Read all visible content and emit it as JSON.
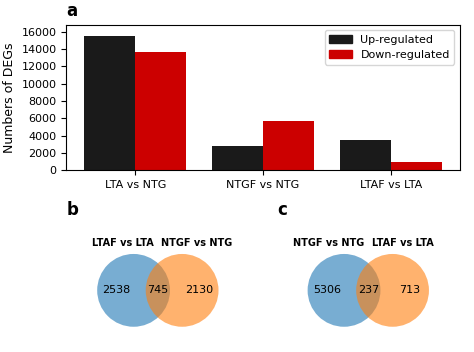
{
  "chart_data": [
    {
      "type": "bar",
      "title": "a",
      "categories": [
        "LTA vs NTG",
        "NTGF vs NTG",
        "LTAF vs LTA"
      ],
      "series": [
        {
          "name": "Up-regulated",
          "color": "#1a1a1a",
          "values": [
            15500,
            2800,
            3500
          ]
        },
        {
          "name": "Down-regulated",
          "color": "#cc0000",
          "values": [
            13700,
            5700,
            900
          ]
        }
      ],
      "y_label": "Numbers of DEGs",
      "ylim": [
        0,
        16800
      ],
      "yticks": [
        0,
        2000,
        4000,
        6000,
        8000,
        10000,
        12000,
        14000,
        16000
      ],
      "legend": "upper right"
    },
    {
      "type": "venn",
      "title": "b",
      "categories": [
        "LTAF vs LTA",
        null,
        "NTGF vs NTG"
      ],
      "values": [
        2538,
        745,
        2130
      ]
    },
    {
      "type": "venn",
      "title": "c",
      "categories": [
        "NTGF vs NTG",
        null,
        "LTAF vs LTA"
      ],
      "values": [
        5306,
        237,
        713
      ]
    }
  ]
}
